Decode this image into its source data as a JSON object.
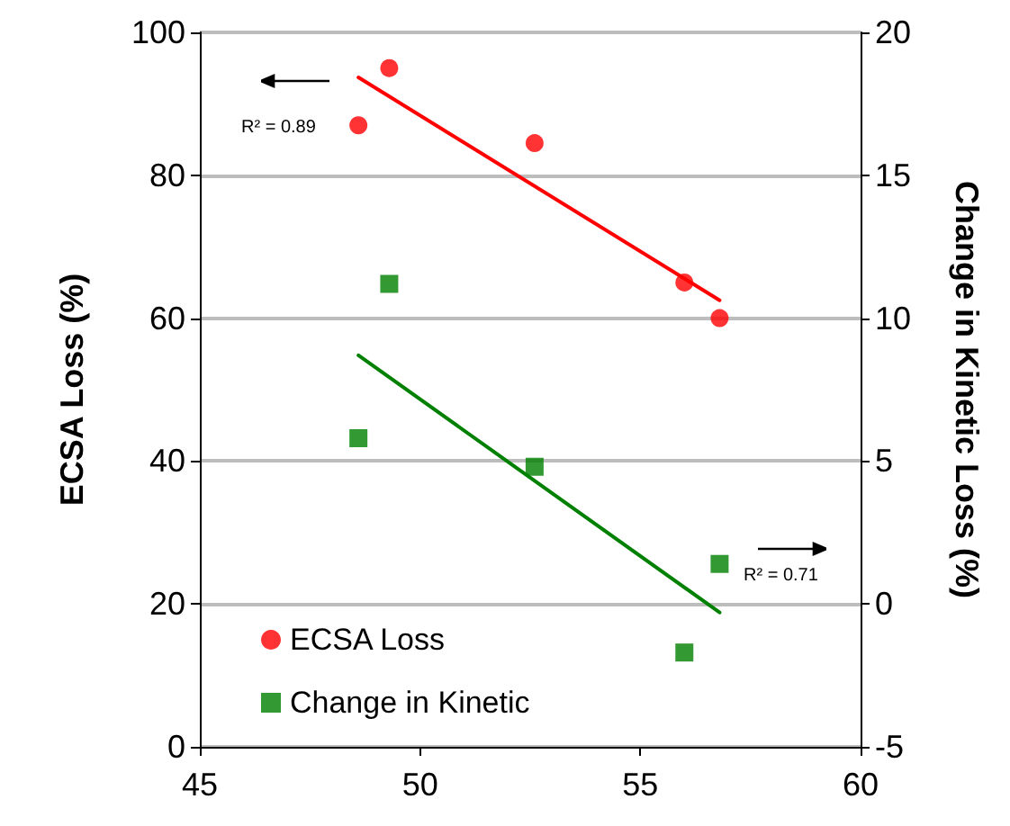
{
  "chart_data": {
    "type": "scatter",
    "ylabel": "ECSA Loss (%)",
    "y2label": "Change in Kinetic Loss (%)",
    "xlim": [
      45,
      60
    ],
    "xticks": [
      45,
      50,
      55,
      60
    ],
    "ylim": [
      0,
      100
    ],
    "yticks": [
      0,
      20,
      40,
      60,
      80,
      100
    ],
    "y2lim": [
      -5,
      20
    ],
    "y2ticks": [
      -5,
      0,
      5,
      10,
      15,
      20
    ],
    "grid": "y",
    "legend": "bottom left",
    "annotations": [
      "R² = 0.89",
      "R² = 0.71"
    ],
    "series": [
      {
        "name": "ECSA Loss",
        "marker": "circle",
        "color": "#ff0000",
        "x": [
          48.6,
          49.3,
          52.6,
          56.0,
          56.8
        ],
        "values": [
          87,
          95,
          84.5,
          65,
          60
        ]
      },
      {
        "name": "Change in Kinetic",
        "marker": "square",
        "axis": "y2",
        "color": "#008000",
        "x": [
          48.6,
          49.3,
          52.6,
          56.0,
          56.8
        ],
        "values": [
          5.8,
          11.2,
          4.8,
          -1.7,
          1.4
        ]
      },
      {
        "type": "line",
        "color": "#ff0000",
        "x": [
          48.6,
          56.8
        ],
        "values": [
          93.7,
          62.5
        ]
      },
      {
        "type": "line",
        "axis": "y2",
        "color": "#008000",
        "x": [
          48.6,
          56.8
        ],
        "values": [
          8.7,
          -0.3
        ]
      }
    ]
  }
}
